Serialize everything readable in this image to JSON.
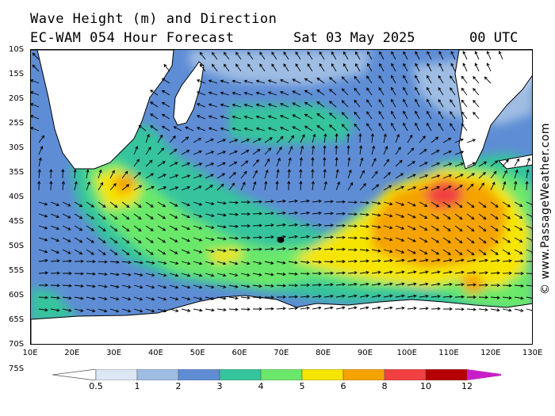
{
  "title": {
    "line1": "Wave Height (m) and Direction",
    "line2_left": "EC-WAM 054 Hour Forecast",
    "line2_date": "Sat 03 May 2025",
    "line2_time": "00 UTC"
  },
  "credit": "© www.PassageWeather.com",
  "lat_labels": [
    "10S",
    "15S",
    "20S",
    "25S",
    "30S",
    "35S",
    "40S",
    "45S",
    "50S",
    "55S",
    "60S",
    "65S",
    "70S",
    "75S"
  ],
  "lon_labels": [
    "10E",
    "20E",
    "30E",
    "40E",
    "50E",
    "60E",
    "70E",
    "80E",
    "90E",
    "100E",
    "110E",
    "120E",
    "130E"
  ],
  "legend": {
    "labels": [
      "0.5",
      "1",
      "2",
      "3",
      "4",
      "5",
      "6",
      "8",
      "10",
      "12"
    ],
    "colors": [
      "#ffffff",
      "#dce6f5",
      "#9fbde3",
      "#5e8dd5",
      "#36c49c",
      "#6be86b",
      "#f5e500",
      "#f5a300",
      "#f04040",
      "#b40000",
      "#c81ec8"
    ]
  },
  "colors": {
    "land": "#ffffff",
    "coast": "#000000",
    "arrow": "#000000"
  }
}
